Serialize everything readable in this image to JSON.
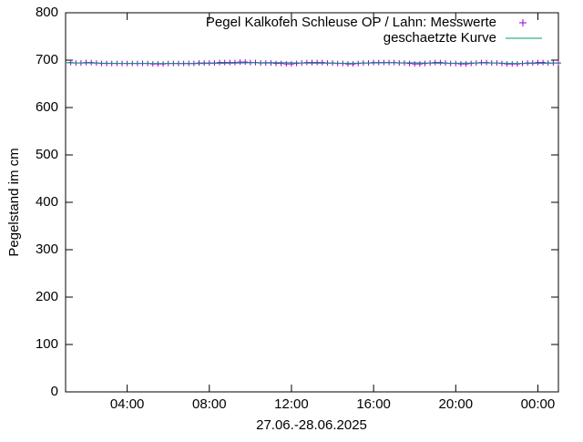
{
  "chart_data": {
    "type": "line",
    "ylabel": "Pegelstand im cm",
    "xlabel": "27.06.-28.06.2025",
    "xlim": [
      1,
      25
    ],
    "xticks": [
      {
        "value": 4,
        "label": "04:00"
      },
      {
        "value": 8,
        "label": "08:00"
      },
      {
        "value": 12,
        "label": "12:00"
      },
      {
        "value": 16,
        "label": "16:00"
      },
      {
        "value": 20,
        "label": "20:00"
      },
      {
        "value": 24,
        "label": "00:00"
      }
    ],
    "ylim": [
      0,
      800
    ],
    "yticks": [
      0,
      100,
      200,
      300,
      400,
      500,
      600,
      700,
      800
    ],
    "grid": false,
    "legend": "top-right",
    "series": [
      {
        "name": "Pegel Kalkofen Schleuse OP / Lahn: Messwerte",
        "color": "#9400d3",
        "marker": "+",
        "x": [
          1.25,
          1.5,
          1.75,
          2,
          2.25,
          2.5,
          2.75,
          3,
          3.25,
          3.5,
          3.75,
          4,
          4.25,
          4.5,
          4.75,
          5,
          5.25,
          5.5,
          5.75,
          6,
          6.25,
          6.5,
          6.75,
          7,
          7.25,
          7.5,
          7.75,
          8,
          8.25,
          8.5,
          8.75,
          9,
          9.25,
          9.5,
          9.75,
          10,
          10.25,
          10.5,
          10.75,
          11,
          11.25,
          11.5,
          11.75,
          12,
          12.25,
          12.5,
          12.75,
          13,
          13.25,
          13.5,
          13.75,
          14,
          14.25,
          14.5,
          14.75,
          15,
          15.25,
          15.5,
          15.75,
          16,
          16.25,
          16.5,
          16.75,
          17,
          17.25,
          17.5,
          17.75,
          18,
          18.25,
          18.5,
          18.75,
          19,
          19.25,
          19.5,
          19.75,
          20,
          20.25,
          20.5,
          20.75,
          21,
          21.25,
          21.5,
          21.75,
          22,
          22.25,
          22.5,
          22.75,
          23,
          23.25,
          23.5,
          23.75,
          24,
          24.25,
          24.5,
          24.75,
          25
        ],
        "values": [
          695,
          694,
          694,
          695,
          695,
          694,
          693,
          693,
          693,
          693,
          693,
          693,
          693,
          693,
          693,
          693,
          692,
          692,
          692,
          693,
          693,
          693,
          693,
          693,
          693,
          694,
          694,
          694,
          694,
          695,
          695,
          695,
          695,
          696,
          696,
          695,
          695,
          694,
          694,
          694,
          693,
          693,
          692,
          692,
          693,
          694,
          695,
          695,
          695,
          695,
          694,
          694,
          693,
          693,
          692,
          692,
          693,
          694,
          694,
          695,
          695,
          695,
          695,
          695,
          694,
          694,
          693,
          692,
          692,
          693,
          694,
          695,
          695,
          694,
          693,
          693,
          692,
          692,
          693,
          694,
          695,
          695,
          694,
          694,
          693,
          692,
          692,
          692,
          693,
          694,
          694,
          695,
          695,
          694,
          694,
          694
        ]
      },
      {
        "name": "geschaetzte Kurve",
        "color": "#009e73",
        "marker": "line",
        "x": [
          1,
          2,
          3,
          4,
          5,
          6,
          7,
          8,
          9,
          10,
          11,
          12,
          13,
          14,
          15,
          16,
          17,
          18,
          19,
          20,
          21,
          22,
          23,
          24,
          25
        ],
        "values": [
          694.5,
          694,
          693.5,
          693,
          693,
          693,
          692.5,
          693,
          693.5,
          694.5,
          695,
          694.5,
          693.5,
          693.5,
          693.5,
          694,
          694.5,
          694.5,
          693.5,
          693.5,
          694,
          694,
          693,
          693,
          694
        ]
      }
    ]
  }
}
